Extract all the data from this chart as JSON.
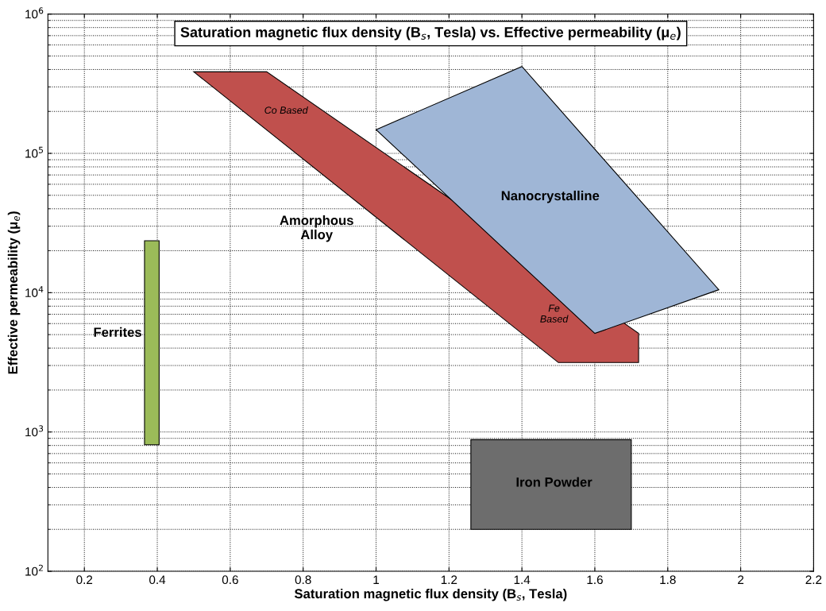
{
  "chart_data": {
    "type": "area",
    "title": "Saturation magnetic flux density (B$_{s}$, Tesla) vs. Effective permeability (μ$_{e}$)",
    "xlabel": "Saturation magnetic flux density (B$_{s}$, Tesla)",
    "ylabel": "Effective permeability (μ$_{e}$)",
    "series": [
      {
        "name": "Ferrites",
        "color": "#9bbb59",
        "x": [
          0.365,
          0.405,
          0.405,
          0.365
        ],
        "values": [
          810,
          810,
          23600,
          23600
        ]
      },
      {
        "name": "Iron Powder",
        "color": "#6d6d6d",
        "x": [
          1.26,
          1.7,
          1.7,
          1.26
        ],
        "values": [
          200,
          200,
          880,
          880
        ]
      },
      {
        "name": "Amorphous\nAlloy",
        "color": "#c0504d",
        "x": [
          0.5,
          0.7,
          1.22,
          1.69,
          1.72,
          1.72,
          1.5
        ],
        "values": [
          385000,
          385000,
          44000,
          5800,
          5100,
          3150,
          3150
        ]
      },
      {
        "name": "Nanocrystalline",
        "color": "#9fb6d6",
        "x": [
          1.0,
          1.4,
          1.94,
          1.6
        ],
        "values": [
          148000,
          420000,
          10500,
          5100
        ]
      }
    ],
    "annotations": [
      "Co Based",
      "Fe\nBased"
    ],
    "log": "y",
    "xlim": [
      0.1,
      2.2
    ],
    "ylim": [
      100,
      1000000
    ],
    "xticks": [
      0.2,
      0.4,
      0.6,
      0.8,
      1,
      1.2,
      1.4,
      1.6,
      1.8,
      2,
      2.2
    ],
    "yticks": [
      {
        "value": 100,
        "label": "10$^{2}$"
      },
      {
        "value": 1000,
        "label": "10$^{3}$"
      },
      {
        "value": 10000,
        "label": "10$^{4}$"
      },
      {
        "value": 100000,
        "label": "10$^{5}$"
      },
      {
        "value": 1000000,
        "label": "10$^{6}$"
      }
    ],
    "grid": true
  }
}
